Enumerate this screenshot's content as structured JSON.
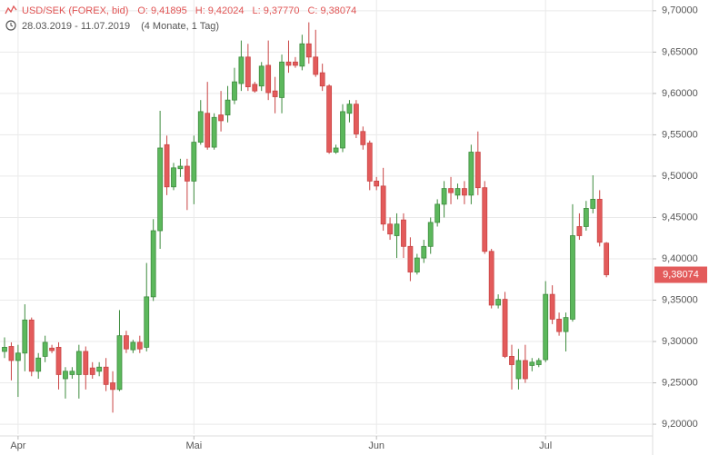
{
  "header": {
    "symbol": "USD/SEK (FOREX, bid)",
    "ohlc": [
      {
        "label": "O:",
        "value": "9,41895"
      },
      {
        "label": "H:",
        "value": "9,42024"
      },
      {
        "label": "L:",
        "value": "9,37770"
      },
      {
        "label": "C:",
        "value": "9,38074"
      }
    ],
    "range": "28.03.2019 - 11.07.2019",
    "duration": "(4 Monate, 1 Tag)"
  },
  "chart_data": {
    "type": "candlestick",
    "categories": [
      null,
      null,
      "Apr",
      null,
      null,
      null,
      null,
      null,
      null,
      null,
      null,
      null,
      null,
      null,
      null,
      null,
      null,
      null,
      null,
      null,
      null,
      null,
      null,
      null,
      null,
      null,
      null,
      null,
      "Mai",
      null,
      null,
      null,
      null,
      null,
      null,
      null,
      null,
      null,
      null,
      null,
      null,
      null,
      null,
      null,
      null,
      null,
      null,
      null,
      null,
      null,
      null,
      null,
      null,
      null,
      null,
      "Jun",
      null,
      null,
      null,
      null,
      null,
      null,
      null,
      null,
      null,
      null,
      null,
      null,
      null,
      null,
      null,
      null,
      null,
      null,
      null,
      null,
      null,
      null,
      null,
      null,
      "Jul",
      null,
      null,
      null,
      null,
      null,
      null,
      null,
      null,
      null
    ],
    "open": [
      9.288,
      9.294,
      9.277,
      9.286,
      9.326,
      9.264,
      9.282,
      9.292,
      9.293,
      9.255,
      9.26,
      9.26,
      9.288,
      9.268,
      9.264,
      9.269,
      9.25,
      9.242,
      9.307,
      9.29,
      9.299,
      9.293,
      9.354,
      9.434,
      9.538,
      9.487,
      9.509,
      9.512,
      9.494,
      9.541,
      9.576,
      9.535,
      9.574,
      9.574,
      9.592,
      9.612,
      9.644,
      9.611,
      9.609,
      9.634,
      9.603,
      9.595,
      9.638,
      9.638,
      9.633,
      9.66,
      9.644,
      9.625,
      9.609,
      9.529,
      9.534,
      9.576,
      9.587,
      9.554,
      9.54,
      9.494,
      9.488,
      9.442,
      9.428,
      9.447,
      9.415,
      9.384,
      9.401,
      9.415,
      9.444,
      9.466,
      9.485,
      9.477,
      9.485,
      9.477,
      9.529,
      9.486,
      9.409,
      9.344,
      9.351,
      9.282,
      9.255,
      9.277,
      9.271,
      9.272,
      9.278,
      9.357,
      9.327,
      9.312,
      9.327,
      9.439,
      9.439,
      9.461,
      9.472,
      9.41895
    ],
    "high": [
      9.305,
      9.299,
      9.296,
      9.345,
      9.329,
      9.286,
      9.307,
      9.296,
      9.299,
      9.269,
      9.269,
      9.296,
      9.294,
      9.275,
      9.275,
      9.28,
      9.264,
      9.338,
      9.313,
      9.302,
      9.307,
      9.395,
      9.448,
      9.579,
      9.549,
      9.516,
      9.521,
      9.521,
      9.549,
      9.592,
      9.614,
      9.576,
      9.603,
      9.609,
      9.631,
      9.664,
      9.66,
      9.614,
      9.638,
      9.664,
      9.62,
      9.647,
      9.664,
      9.644,
      9.671,
      9.686,
      9.677,
      9.636,
      9.611,
      9.538,
      9.587,
      9.592,
      9.592,
      9.56,
      9.543,
      9.499,
      9.51,
      9.45,
      9.455,
      9.455,
      9.426,
      9.406,
      9.423,
      9.45,
      9.472,
      9.494,
      9.499,
      9.491,
      9.494,
      9.538,
      9.554,
      9.494,
      9.412,
      9.357,
      9.36,
      9.296,
      9.291,
      9.296,
      9.28,
      9.28,
      9.373,
      9.368,
      9.335,
      9.335,
      9.466,
      9.455,
      9.47,
      9.501,
      9.483,
      9.42024
    ],
    "low": [
      9.28,
      9.253,
      9.233,
      9.264,
      9.258,
      9.255,
      9.275,
      9.286,
      9.242,
      9.231,
      9.255,
      9.231,
      9.242,
      9.255,
      9.258,
      9.24,
      9.214,
      9.24,
      9.286,
      9.286,
      9.286,
      9.288,
      9.349,
      9.412,
      9.477,
      9.483,
      9.499,
      9.459,
      9.466,
      9.538,
      9.532,
      9.532,
      9.554,
      9.565,
      9.587,
      9.603,
      9.603,
      9.601,
      9.603,
      9.592,
      9.576,
      9.576,
      9.625,
      9.631,
      9.628,
      9.636,
      9.62,
      9.603,
      9.527,
      9.527,
      9.529,
      9.565,
      9.546,
      9.532,
      9.483,
      9.483,
      9.434,
      9.423,
      9.401,
      9.401,
      9.373,
      9.381,
      9.395,
      9.406,
      9.439,
      9.45,
      9.466,
      9.472,
      9.466,
      9.466,
      9.477,
      9.406,
      9.34,
      9.34,
      9.28,
      9.242,
      9.242,
      9.25,
      9.264,
      9.269,
      9.275,
      9.321,
      9.307,
      9.288,
      9.324,
      9.423,
      9.434,
      9.455,
      9.415,
      9.3777
    ],
    "close": [
      9.293,
      9.277,
      9.286,
      9.326,
      9.264,
      9.28,
      9.299,
      9.289,
      9.26,
      9.264,
      9.264,
      9.288,
      9.26,
      9.26,
      9.269,
      9.248,
      9.242,
      9.307,
      9.291,
      9.299,
      9.291,
      9.354,
      9.434,
      9.534,
      9.487,
      9.51,
      9.512,
      9.494,
      9.541,
      9.578,
      9.535,
      9.571,
      9.567,
      9.592,
      9.614,
      9.644,
      9.608,
      9.603,
      9.633,
      9.601,
      9.596,
      9.638,
      9.634,
      9.634,
      9.66,
      9.644,
      9.623,
      9.609,
      9.529,
      9.534,
      9.578,
      9.587,
      9.551,
      9.538,
      9.494,
      9.488,
      9.442,
      9.43,
      9.442,
      9.415,
      9.384,
      9.401,
      9.415,
      9.444,
      9.466,
      9.485,
      9.48,
      9.485,
      9.477,
      9.529,
      9.486,
      9.409,
      9.344,
      9.351,
      9.282,
      9.272,
      9.277,
      9.255,
      9.275,
      9.277,
      9.357,
      9.327,
      9.312,
      9.329,
      9.428,
      9.428,
      9.461,
      9.472,
      9.42,
      9.38074
    ],
    "up_color": "#5cb85c",
    "down_color": "#e35b5b",
    "ylim": [
      9.188,
      9.713
    ],
    "yticks": [
      {
        "value": 9.2,
        "label": "9,20000"
      },
      {
        "value": 9.25,
        "label": "9,25000"
      },
      {
        "value": 9.3,
        "label": "9,30000"
      },
      {
        "value": 9.35,
        "label": "9,35000"
      },
      {
        "value": 9.4,
        "label": "9,40000"
      },
      {
        "value": 9.45,
        "label": "9,45000"
      },
      {
        "value": 9.5,
        "label": "9,50000"
      },
      {
        "value": 9.55,
        "label": "9,55000"
      },
      {
        "value": 9.6,
        "label": "9,60000"
      },
      {
        "value": 9.65,
        "label": "9,65000"
      },
      {
        "value": 9.7,
        "label": "9,70000"
      }
    ],
    "last_price": {
      "value": 9.38074,
      "label": "9,38074"
    },
    "grid": true
  }
}
